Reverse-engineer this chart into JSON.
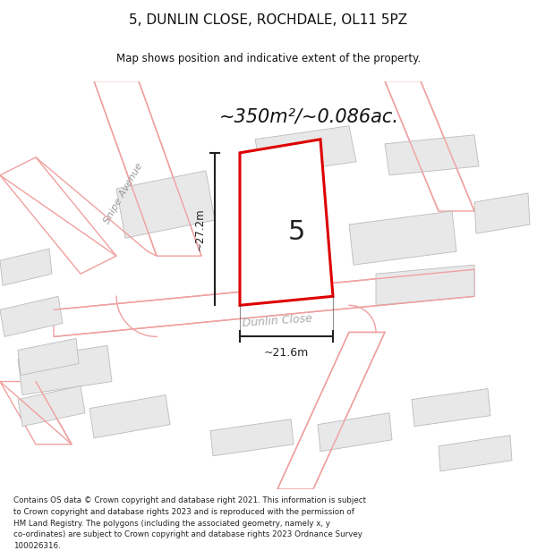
{
  "title": "5, DUNLIN CLOSE, ROCHDALE, OL11 5PZ",
  "subtitle": "Map shows position and indicative extent of the property.",
  "area_text": "~350m²/~0.086ac.",
  "plot_number": "5",
  "dim_vertical": "~27.2m",
  "dim_horizontal": "~21.6m",
  "street_label1": "Snipe Avenue",
  "street_label2": "Dunlin Close",
  "copyright_text": "Contains OS data © Crown copyright and database right 2021. This information is subject\nto Crown copyright and database rights 2023 and is reproduced with the permission of\nHM Land Registry. The polygons (including the associated geometry, namely x, y\nco-ordinates) are subject to Crown copyright and database rights 2023 Ordnance Survey\n100026316.",
  "map_bg": "#ffffff",
  "building_fill": "#e8e8e8",
  "building_edge": "#bbbbbb",
  "road_color": "#f0a0a0",
  "road_fill": "#ffffff",
  "plot_fill": "#ffffff",
  "plot_edge": "#dd0000",
  "dim_color": "#333333",
  "text_color": "#111111",
  "street_color_snipe": "#aaaaaa",
  "street_color_dunlin": "#aaaaaa"
}
